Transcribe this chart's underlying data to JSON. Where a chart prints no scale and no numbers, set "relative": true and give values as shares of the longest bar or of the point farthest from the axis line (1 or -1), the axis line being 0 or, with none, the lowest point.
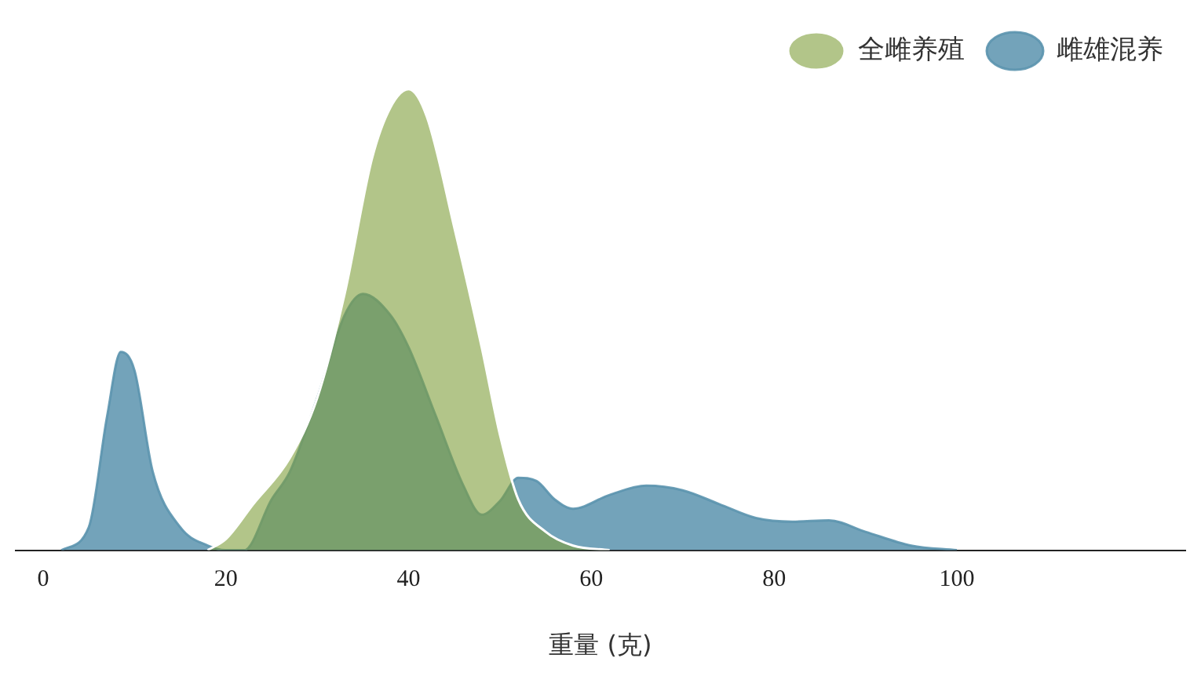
{
  "chart_data": {
    "type": "area",
    "relative": true,
    "xlabel": "重量 (克)",
    "xlim": [
      -3,
      125
    ],
    "xticks": [
      0,
      20,
      40,
      60,
      80,
      100
    ],
    "grid": false,
    "legend": "top right",
    "series": [
      {
        "name": "雌雄混养",
        "color": "#5b93ae",
        "x": [
          2,
          5,
          7,
          8.5,
          10,
          12,
          15,
          18,
          20,
          22,
          25,
          27,
          30,
          33,
          35,
          38,
          40,
          43,
          46,
          48,
          50,
          52,
          54,
          56,
          58,
          62,
          66,
          70,
          74,
          78,
          82,
          86,
          90,
          95,
          100
        ],
        "values": [
          0,
          0.05,
          0.29,
          0.43,
          0.39,
          0.17,
          0.05,
          0.01,
          0,
          0,
          0.11,
          0.17,
          0.33,
          0.51,
          0.556,
          0.51,
          0.44,
          0.29,
          0.14,
          0.077,
          0.107,
          0.157,
          0.15,
          0.11,
          0.09,
          0.12,
          0.14,
          0.13,
          0.1,
          0.07,
          0.062,
          0.065,
          0.04,
          0.01,
          0
        ]
      },
      {
        "name": "全雌养殖",
        "color": "#7f9f3a",
        "x": [
          18,
          20,
          23,
          27,
          30,
          33,
          36,
          38,
          40,
          42,
          45,
          48,
          50,
          52,
          55,
          58,
          62
        ],
        "values": [
          0,
          0.024,
          0.1,
          0.2,
          0.33,
          0.556,
          0.85,
          0.96,
          1,
          0.94,
          0.7,
          0.44,
          0.25,
          0.11,
          0.04,
          0.01,
          0
        ]
      }
    ]
  }
}
